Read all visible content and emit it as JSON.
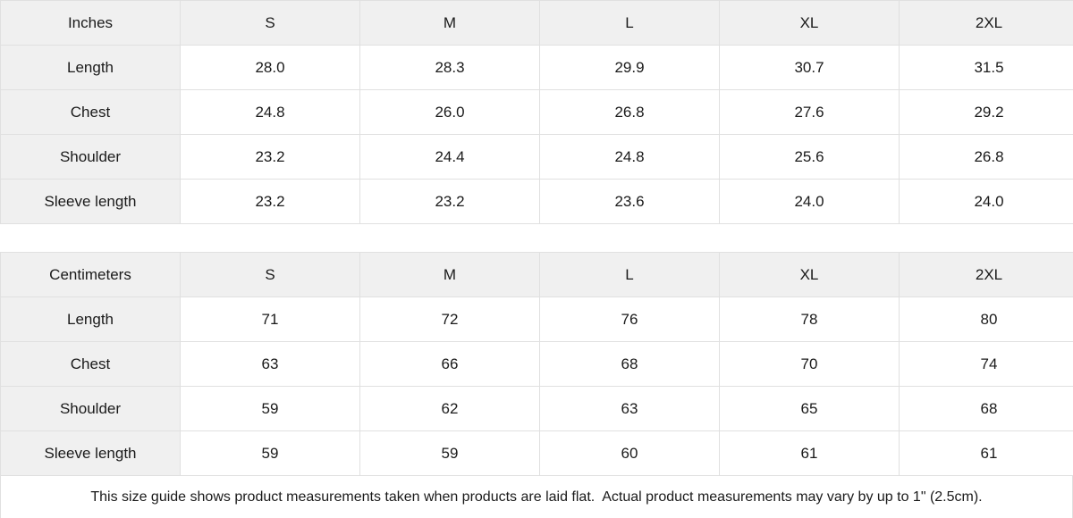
{
  "chart_data": [
    {
      "type": "table",
      "unit_label": "Inches",
      "columns": [
        "S",
        "M",
        "L",
        "XL",
        "2XL"
      ],
      "rows": [
        {
          "label": "Length",
          "values": [
            "28.0",
            "28.3",
            "29.9",
            "30.7",
            "31.5"
          ]
        },
        {
          "label": "Chest",
          "values": [
            "24.8",
            "26.0",
            "26.8",
            "27.6",
            "29.2"
          ]
        },
        {
          "label": "Shoulder",
          "values": [
            "23.2",
            "24.4",
            "24.8",
            "25.6",
            "26.8"
          ]
        },
        {
          "label": "Sleeve length",
          "values": [
            "23.2",
            "23.2",
            "23.6",
            "24.0",
            "24.0"
          ]
        }
      ]
    },
    {
      "type": "table",
      "unit_label": "Centimeters",
      "columns": [
        "S",
        "M",
        "L",
        "XL",
        "2XL"
      ],
      "rows": [
        {
          "label": "Length",
          "values": [
            "71",
            "72",
            "76",
            "78",
            "80"
          ]
        },
        {
          "label": "Chest",
          "values": [
            "63",
            "66",
            "68",
            "70",
            "74"
          ]
        },
        {
          "label": "Shoulder",
          "values": [
            "59",
            "62",
            "63",
            "65",
            "68"
          ]
        },
        {
          "label": "Sleeve length",
          "values": [
            "59",
            "59",
            "60",
            "61",
            "61"
          ]
        }
      ]
    }
  ],
  "footer": {
    "note": "This size guide shows product measurements taken when products are laid flat.  Actual product measurements may vary by up to 1\" (2.5cm)."
  },
  "colors": {
    "header_bg": "#f0f0f0",
    "cell_bg": "#ffffff",
    "border": "#e0e0e0",
    "text": "#1a1a1a"
  }
}
